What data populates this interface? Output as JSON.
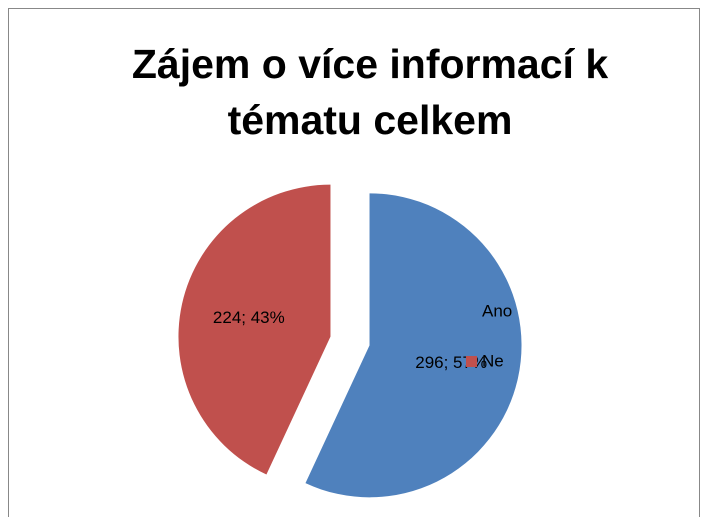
{
  "chart_data": {
    "type": "pie",
    "title": "Zájem o více informací k tématu celkem",
    "categories": [
      "Ano",
      "Ne"
    ],
    "values": [
      296,
      224
    ],
    "value_labels": [
      "296; 57%",
      "224; 43%"
    ],
    "colors": [
      "#4f81bd",
      "#c0504d"
    ],
    "exploded": true,
    "legend": "right"
  }
}
